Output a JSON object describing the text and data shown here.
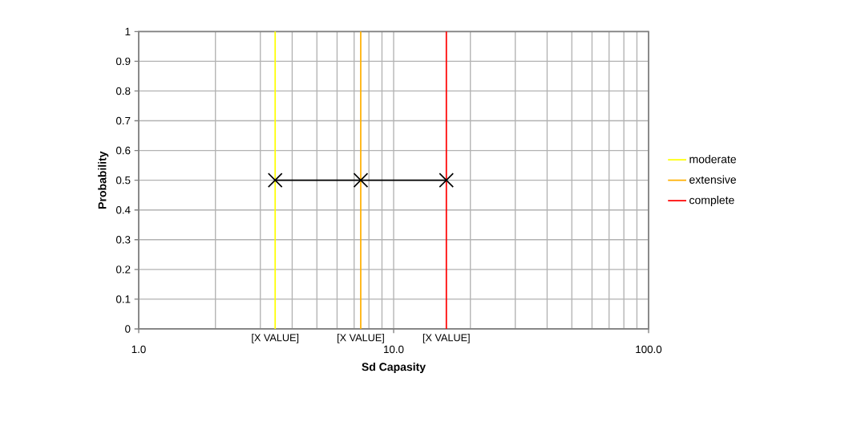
{
  "chart_data": {
    "type": "line",
    "xlabel": "Sd Capasity",
    "ylabel": "Probability",
    "log": "x",
    "grid": true,
    "legend": "right",
    "line_style": "solid",
    "xlim": [
      1,
      100
    ],
    "xticks": [
      {
        "value": 1,
        "label": "1.0"
      },
      {
        "value": 10,
        "label": "10.0"
      },
      {
        "value": 100,
        "label": "100.0"
      }
    ],
    "ylim": [
      0,
      1
    ],
    "yticks": [
      0,
      0.1,
      0.2,
      0.3,
      0.4,
      0.5,
      0.6,
      0.7,
      0.8,
      0.9,
      1
    ],
    "series": [
      {
        "name": "moderate",
        "color": "#ffff00",
        "x": [
          3.43,
          3.43
        ],
        "values": [
          0,
          1
        ],
        "marker": "none"
      },
      {
        "name": "extensive",
        "color": "#ffb000",
        "x": [
          7.43,
          7.43
        ],
        "values": [
          0,
          1
        ],
        "marker": "none"
      },
      {
        "name": "complete",
        "color": "#ff0000",
        "x": [
          16.1,
          16.1
        ],
        "values": [
          0,
          1
        ],
        "marker": "none"
      },
      {
        "color": "#000000",
        "x": [
          3.43,
          7.43,
          16.1
        ],
        "values": [
          0.5,
          0.5,
          0.5
        ],
        "marker": "cross"
      }
    ],
    "annotations": [
      {
        "text": "[X VALUE]",
        "x": 3.43,
        "y": 0
      },
      {
        "text": "[X VALUE]",
        "x": 7.43,
        "y": 0
      },
      {
        "text": "[X VALUE]",
        "x": 16.1,
        "y": 0
      }
    ]
  }
}
